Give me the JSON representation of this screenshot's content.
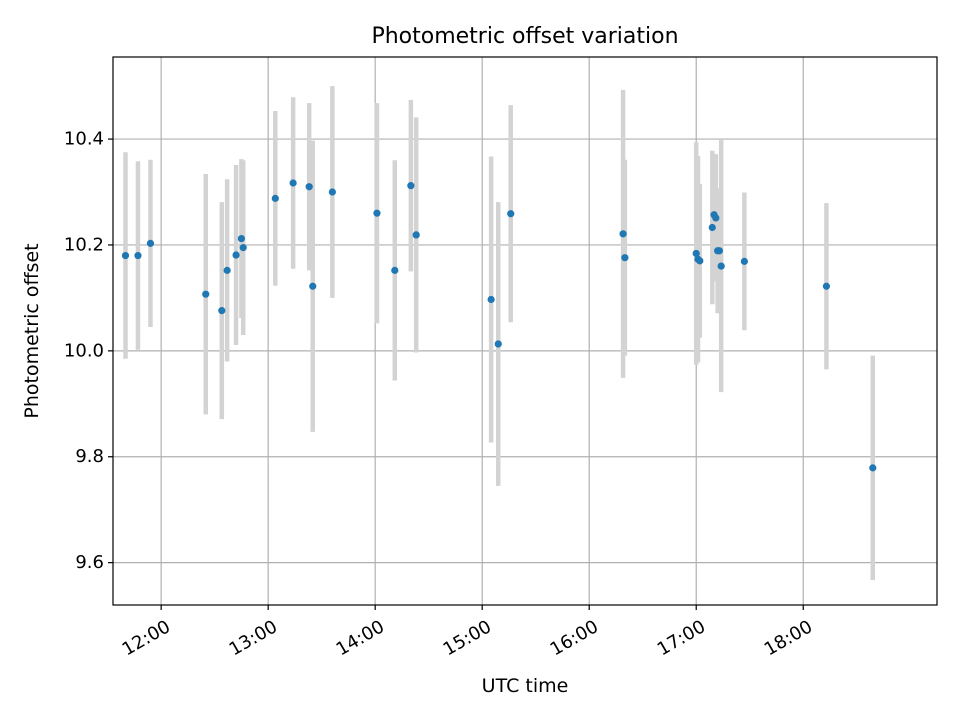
{
  "chart_data": {
    "type": "scatter",
    "title": "Photometric offset variation",
    "xlabel": "UTC time",
    "ylabel": "Photometric offset",
    "x_tick_labels": [
      "12:00",
      "13:00",
      "14:00",
      "15:00",
      "16:00",
      "17:00",
      "18:00"
    ],
    "x_ticks": [
      "12:00",
      "13:00",
      "14:00",
      "15:00",
      "16:00",
      "17:00",
      "18:00"
    ],
    "xlim": [
      "11:33",
      "19:15"
    ],
    "y_ticks": [
      9.6,
      9.8,
      10.0,
      10.2,
      10.4
    ],
    "y_tick_labels": [
      "9.6",
      "9.8",
      "10.0",
      "10.2",
      "10.4"
    ],
    "ylim": [
      9.52,
      10.555
    ],
    "grid": true,
    "marker_color": "#1f77b4",
    "errorbar_color": "#d3d3d3",
    "points": [
      {
        "x": "11:40",
        "y": 10.18,
        "err": 0.195
      },
      {
        "x": "11:47",
        "y": 10.18,
        "err": 0.178
      },
      {
        "x": "11:54",
        "y": 10.203,
        "err": 0.158
      },
      {
        "x": "12:25",
        "y": 10.107,
        "err": 0.227
      },
      {
        "x": "12:34",
        "y": 10.076,
        "err": 0.205
      },
      {
        "x": "12:37",
        "y": 10.152,
        "err": 0.172
      },
      {
        "x": "12:42",
        "y": 10.181,
        "err": 0.17
      },
      {
        "x": "12:45",
        "y": 10.212,
        "err": 0.15
      },
      {
        "x": "12:46",
        "y": 10.195,
        "err": 0.165
      },
      {
        "x": "13:04",
        "y": 10.288,
        "err": 0.165
      },
      {
        "x": "13:14",
        "y": 10.317,
        "err": 0.162
      },
      {
        "x": "13:23",
        "y": 10.31,
        "err": 0.158
      },
      {
        "x": "13:25",
        "y": 10.122,
        "err": 0.275
      },
      {
        "x": "13:36",
        "y": 10.3,
        "err": 0.2
      },
      {
        "x": "14:01",
        "y": 10.26,
        "err": 0.208
      },
      {
        "x": "14:11",
        "y": 10.152,
        "err": 0.208
      },
      {
        "x": "14:20",
        "y": 10.312,
        "err": 0.162
      },
      {
        "x": "14:23",
        "y": 10.219,
        "err": 0.222
      },
      {
        "x": "15:05",
        "y": 10.097,
        "err": 0.27
      },
      {
        "x": "15:09",
        "y": 10.013,
        "err": 0.268
      },
      {
        "x": "15:16",
        "y": 10.259,
        "err": 0.205
      },
      {
        "x": "16:19",
        "y": 10.221,
        "err": 0.272
      },
      {
        "x": "16:20",
        "y": 10.176,
        "err": 0.185
      },
      {
        "x": "17:00",
        "y": 10.184,
        "err": 0.21
      },
      {
        "x": "17:01",
        "y": 10.173,
        "err": 0.195
      },
      {
        "x": "17:02",
        "y": 10.17,
        "err": 0.145
      },
      {
        "x": "17:09",
        "y": 10.233,
        "err": 0.145
      },
      {
        "x": "17:10",
        "y": 10.257,
        "err": 0.115
      },
      {
        "x": "17:11",
        "y": 10.251,
        "err": 0.12
      },
      {
        "x": "17:12",
        "y": 10.189,
        "err": 0.118
      },
      {
        "x": "17:13",
        "y": 10.189,
        "err": 0.1
      },
      {
        "x": "17:14",
        "y": 10.16,
        "err": 0.238
      },
      {
        "x": "17:27",
        "y": 10.169,
        "err": 0.13
      },
      {
        "x": "18:13",
        "y": 10.122,
        "err": 0.157
      },
      {
        "x": "18:39",
        "y": 9.779,
        "err": 0.212
      }
    ]
  }
}
